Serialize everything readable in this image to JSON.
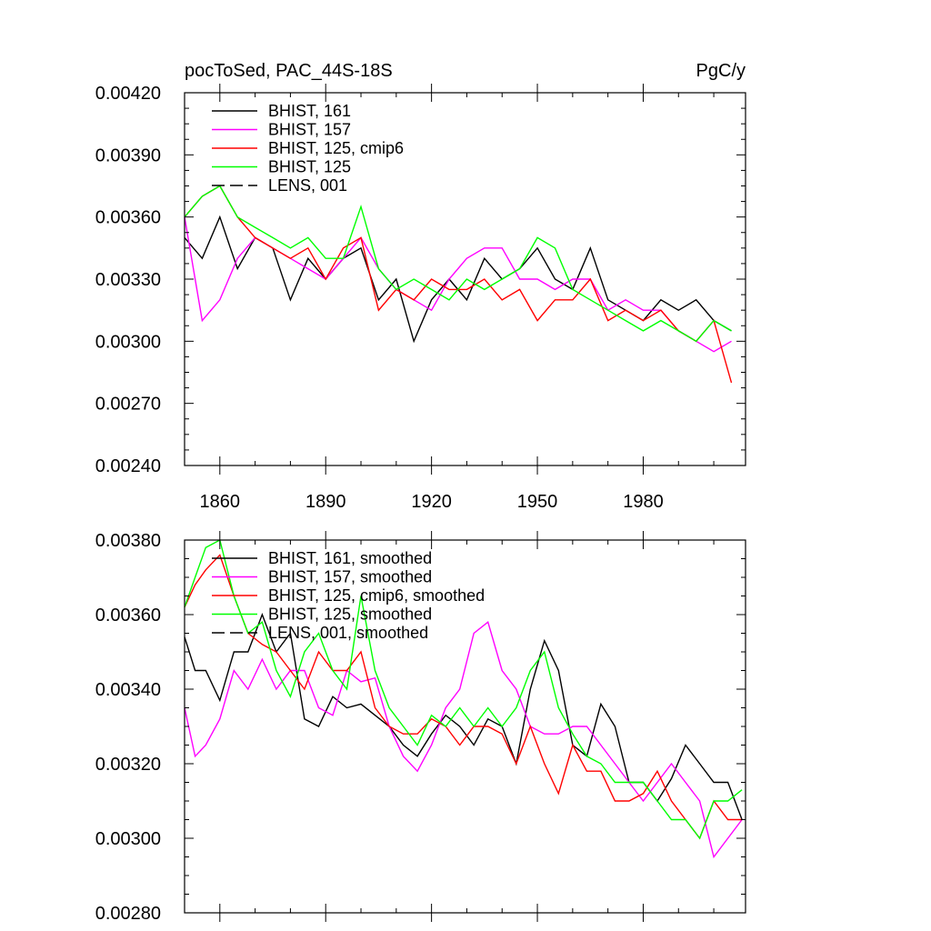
{
  "chart_data": [
    {
      "type": "line",
      "title": "pocToSed, PAC_44S-18S",
      "units_label": "PgC/y",
      "xlabel": "",
      "ylabel": "",
      "xlim": [
        1850,
        2009
      ],
      "ylim": [
        0.0024,
        0.0042
      ],
      "x_ticks": [
        1860,
        1890,
        1920,
        1950,
        1980
      ],
      "x_tick_labels": [
        "1860",
        "1890",
        "1920",
        "1950",
        "1980"
      ],
      "y_ticks": [
        0.0024,
        0.0027,
        0.003,
        0.0033,
        0.0036,
        0.0039,
        0.0042
      ],
      "y_tick_labels": [
        "0.00240",
        "0.00270",
        "0.00300",
        "0.00330",
        "0.00360",
        "0.00390",
        "0.00420"
      ],
      "grid": false,
      "legend_position": "top-left",
      "series": [
        {
          "name": "BHIST, 161",
          "color": "#000000",
          "dash": "solid",
          "x": [
            1850,
            1855,
            1860,
            1865,
            1870,
            1875,
            1880,
            1885,
            1890,
            1895,
            1900,
            1905,
            1910,
            1915,
            1920,
            1925,
            1930,
            1935,
            1940,
            1945,
            1950,
            1955,
            1960,
            1965,
            1970,
            1975,
            1980,
            1985,
            1990,
            1995,
            2000,
            2005
          ],
          "values": [
            0.0035,
            0.0034,
            0.0036,
            0.00335,
            0.0035,
            0.00345,
            0.0032,
            0.0034,
            0.0033,
            0.0034,
            0.00345,
            0.0032,
            0.0033,
            0.003,
            0.0032,
            0.0033,
            0.0032,
            0.0034,
            0.0033,
            0.00335,
            0.00345,
            0.0033,
            0.00325,
            0.00345,
            0.0032,
            0.00315,
            0.0031,
            0.0032,
            0.00315,
            0.0032,
            0.0031,
            0.00305
          ]
        },
        {
          "name": "BHIST, 157",
          "color": "#ff00ff",
          "dash": "solid",
          "x": [
            1850,
            1855,
            1860,
            1865,
            1870,
            1875,
            1880,
            1885,
            1890,
            1895,
            1900,
            1905,
            1910,
            1915,
            1920,
            1925,
            1930,
            1935,
            1940,
            1945,
            1950,
            1955,
            1960,
            1965,
            1970,
            1975,
            1980,
            1985,
            1990,
            1995,
            2000,
            2005
          ],
          "values": [
            0.0036,
            0.0031,
            0.0032,
            0.0034,
            0.0035,
            0.00345,
            0.0034,
            0.00335,
            0.0033,
            0.0034,
            0.0035,
            0.00335,
            0.00325,
            0.0032,
            0.00315,
            0.0033,
            0.0034,
            0.00345,
            0.00345,
            0.0033,
            0.0033,
            0.00325,
            0.0033,
            0.0033,
            0.00315,
            0.0032,
            0.00315,
            0.00315,
            0.00305,
            0.003,
            0.00295,
            0.003
          ]
        },
        {
          "name": "BHIST, 125, cmip6",
          "color": "#ff0000",
          "dash": "solid",
          "x": [
            1850,
            1855,
            1860,
            1865,
            1870,
            1875,
            1880,
            1885,
            1890,
            1895,
            1900,
            1905,
            1910,
            1915,
            1920,
            1925,
            1930,
            1935,
            1940,
            1945,
            1950,
            1955,
            1960,
            1965,
            1970,
            1975,
            1980,
            1985,
            1990,
            1995,
            2000,
            2005
          ],
          "values": [
            0.0036,
            0.0037,
            0.00375,
            0.0036,
            0.0035,
            0.00345,
            0.0034,
            0.00345,
            0.0033,
            0.00345,
            0.0035,
            0.00315,
            0.00325,
            0.0032,
            0.0033,
            0.00325,
            0.00325,
            0.0033,
            0.0032,
            0.00325,
            0.0031,
            0.0032,
            0.0032,
            0.0033,
            0.0031,
            0.00315,
            0.0031,
            0.00315,
            0.00305,
            0.003,
            0.0031,
            0.0028
          ]
        },
        {
          "name": "BHIST, 125",
          "color": "#00ff00",
          "dash": "solid",
          "x": [
            1850,
            1855,
            1860,
            1865,
            1870,
            1875,
            1880,
            1885,
            1890,
            1895,
            1900,
            1905,
            1910,
            1915,
            1920,
            1925,
            1930,
            1935,
            1940,
            1945,
            1950,
            1955,
            1960,
            1965,
            1970,
            1975,
            1980,
            1985,
            1990,
            1995,
            2000,
            2005
          ],
          "values": [
            0.0036,
            0.0037,
            0.00375,
            0.0036,
            0.00355,
            0.0035,
            0.00345,
            0.0035,
            0.0034,
            0.0034,
            0.00365,
            0.00335,
            0.00325,
            0.0033,
            0.00325,
            0.0032,
            0.0033,
            0.00325,
            0.0033,
            0.00335,
            0.0035,
            0.00345,
            0.00325,
            0.0032,
            0.00315,
            0.0031,
            0.00305,
            0.0031,
            0.00305,
            0.003,
            0.0031,
            0.00305
          ]
        }
      ]
    },
    {
      "type": "line",
      "title": "",
      "xlabel": "",
      "ylabel": "",
      "xlim": [
        1850,
        2009
      ],
      "ylim": [
        0.0028,
        0.0038
      ],
      "x_ticks": [
        1860,
        1890,
        1920,
        1950,
        1980
      ],
      "y_ticks": [
        0.0028,
        0.003,
        0.0032,
        0.0034,
        0.0036,
        0.0038
      ],
      "y_tick_labels": [
        "0.00280",
        "0.00300",
        "0.00320",
        "0.00340",
        "0.00360",
        "0.00380"
      ],
      "grid": false,
      "legend_position": "top-left",
      "series": [
        {
          "name": "BHIST, 161, smoothed",
          "color": "#000000",
          "dash": "solid",
          "x": [
            1850,
            1853,
            1856,
            1860,
            1864,
            1868,
            1872,
            1876,
            1880,
            1884,
            1888,
            1892,
            1896,
            1900,
            1904,
            1908,
            1912,
            1916,
            1920,
            1924,
            1928,
            1932,
            1936,
            1940,
            1944,
            1948,
            1952,
            1956,
            1960,
            1964,
            1968,
            1972,
            1976,
            1980,
            1984,
            1988,
            1992,
            1996,
            2000,
            2004,
            2008
          ],
          "values": [
            0.00354,
            0.00345,
            0.00345,
            0.00337,
            0.0035,
            0.0035,
            0.0036,
            0.0035,
            0.00355,
            0.00332,
            0.0033,
            0.00338,
            0.00335,
            0.00336,
            0.00333,
            0.0033,
            0.00325,
            0.00322,
            0.00328,
            0.00333,
            0.0033,
            0.00325,
            0.00332,
            0.0033,
            0.0032,
            0.0034,
            0.00353,
            0.00345,
            0.00325,
            0.00322,
            0.00336,
            0.0033,
            0.00315,
            0.00315,
            0.0031,
            0.00316,
            0.00325,
            0.0032,
            0.00315,
            0.00315,
            0.00305
          ]
        },
        {
          "name": "BHIST, 157, smoothed",
          "color": "#ff00ff",
          "dash": "solid",
          "x": [
            1850,
            1853,
            1856,
            1860,
            1864,
            1868,
            1872,
            1876,
            1880,
            1884,
            1888,
            1892,
            1896,
            1900,
            1904,
            1908,
            1912,
            1916,
            1920,
            1924,
            1928,
            1932,
            1936,
            1940,
            1944,
            1948,
            1952,
            1956,
            1960,
            1964,
            1968,
            1972,
            1976,
            1980,
            1984,
            1988,
            1992,
            1996,
            2000,
            2004,
            2008
          ],
          "values": [
            0.00335,
            0.00322,
            0.00325,
            0.00332,
            0.00345,
            0.0034,
            0.00348,
            0.0034,
            0.00345,
            0.00345,
            0.00335,
            0.00333,
            0.00345,
            0.00342,
            0.00343,
            0.0033,
            0.00322,
            0.00318,
            0.00325,
            0.00335,
            0.0034,
            0.00355,
            0.00358,
            0.00345,
            0.0034,
            0.0033,
            0.00328,
            0.00328,
            0.0033,
            0.0033,
            0.00325,
            0.0032,
            0.00315,
            0.0031,
            0.00315,
            0.0032,
            0.00315,
            0.0031,
            0.00295,
            0.003,
            0.00305
          ]
        },
        {
          "name": "BHIST, 125, cmip6, smoothed",
          "color": "#ff0000",
          "dash": "solid",
          "x": [
            1850,
            1853,
            1856,
            1860,
            1864,
            1868,
            1872,
            1876,
            1880,
            1884,
            1888,
            1892,
            1896,
            1900,
            1904,
            1908,
            1912,
            1916,
            1920,
            1924,
            1928,
            1932,
            1936,
            1940,
            1944,
            1948,
            1952,
            1956,
            1960,
            1964,
            1968,
            1972,
            1976,
            1980,
            1984,
            1988,
            1992,
            1996,
            2000,
            2004,
            2008
          ],
          "values": [
            0.00362,
            0.00368,
            0.00372,
            0.00376,
            0.00365,
            0.00355,
            0.00352,
            0.0035,
            0.00345,
            0.0034,
            0.0035,
            0.00345,
            0.00345,
            0.0035,
            0.00335,
            0.0033,
            0.00328,
            0.00328,
            0.00332,
            0.0033,
            0.00325,
            0.0033,
            0.0033,
            0.00328,
            0.0032,
            0.0033,
            0.0032,
            0.00312,
            0.00325,
            0.00318,
            0.00318,
            0.0031,
            0.0031,
            0.00312,
            0.00318,
            0.0031,
            0.00305,
            0.003,
            0.0031,
            0.00305,
            0.00305
          ]
        },
        {
          "name": "BHIST, 125, smoothed",
          "color": "#00ff00",
          "dash": "solid",
          "x": [
            1850,
            1853,
            1856,
            1860,
            1864,
            1868,
            1872,
            1876,
            1880,
            1884,
            1888,
            1892,
            1896,
            1900,
            1904,
            1908,
            1912,
            1916,
            1920,
            1924,
            1928,
            1932,
            1936,
            1940,
            1944,
            1948,
            1952,
            1956,
            1960,
            1964,
            1968,
            1972,
            1976,
            1980,
            1984,
            1988,
            1992,
            1996,
            2000,
            2004,
            2008
          ],
          "values": [
            0.00362,
            0.0037,
            0.00378,
            0.0038,
            0.00365,
            0.00355,
            0.00358,
            0.00345,
            0.00338,
            0.0035,
            0.00355,
            0.00345,
            0.0034,
            0.00365,
            0.00345,
            0.00335,
            0.0033,
            0.00325,
            0.00333,
            0.0033,
            0.00335,
            0.0033,
            0.00335,
            0.0033,
            0.00335,
            0.00345,
            0.0035,
            0.00335,
            0.00328,
            0.00322,
            0.0032,
            0.00315,
            0.00315,
            0.00315,
            0.0031,
            0.00305,
            0.00305,
            0.003,
            0.0031,
            0.0031,
            0.00313
          ]
        }
      ]
    }
  ],
  "legend_top": [
    {
      "label": "BHIST, 161",
      "color": "#000000",
      "dash": "solid"
    },
    {
      "label": "BHIST, 157",
      "color": "#ff00ff",
      "dash": "solid"
    },
    {
      "label": "BHIST, 125, cmip6",
      "color": "#ff0000",
      "dash": "solid"
    },
    {
      "label": "BHIST, 125",
      "color": "#00ff00",
      "dash": "solid"
    },
    {
      "label": "LENS, 001",
      "color": "#000000",
      "dash": "dashed"
    }
  ],
  "legend_bottom": [
    {
      "label": "BHIST, 161, smoothed",
      "color": "#000000",
      "dash": "solid"
    },
    {
      "label": "BHIST, 157, smoothed",
      "color": "#ff00ff",
      "dash": "solid"
    },
    {
      "label": "BHIST, 125, cmip6, smoothed",
      "color": "#ff0000",
      "dash": "solid"
    },
    {
      "label": "BHIST, 125, smoothed",
      "color": "#00ff00",
      "dash": "solid"
    },
    {
      "label": "LENS, 001, smoothed",
      "color": "#000000",
      "dash": "dashed"
    }
  ]
}
